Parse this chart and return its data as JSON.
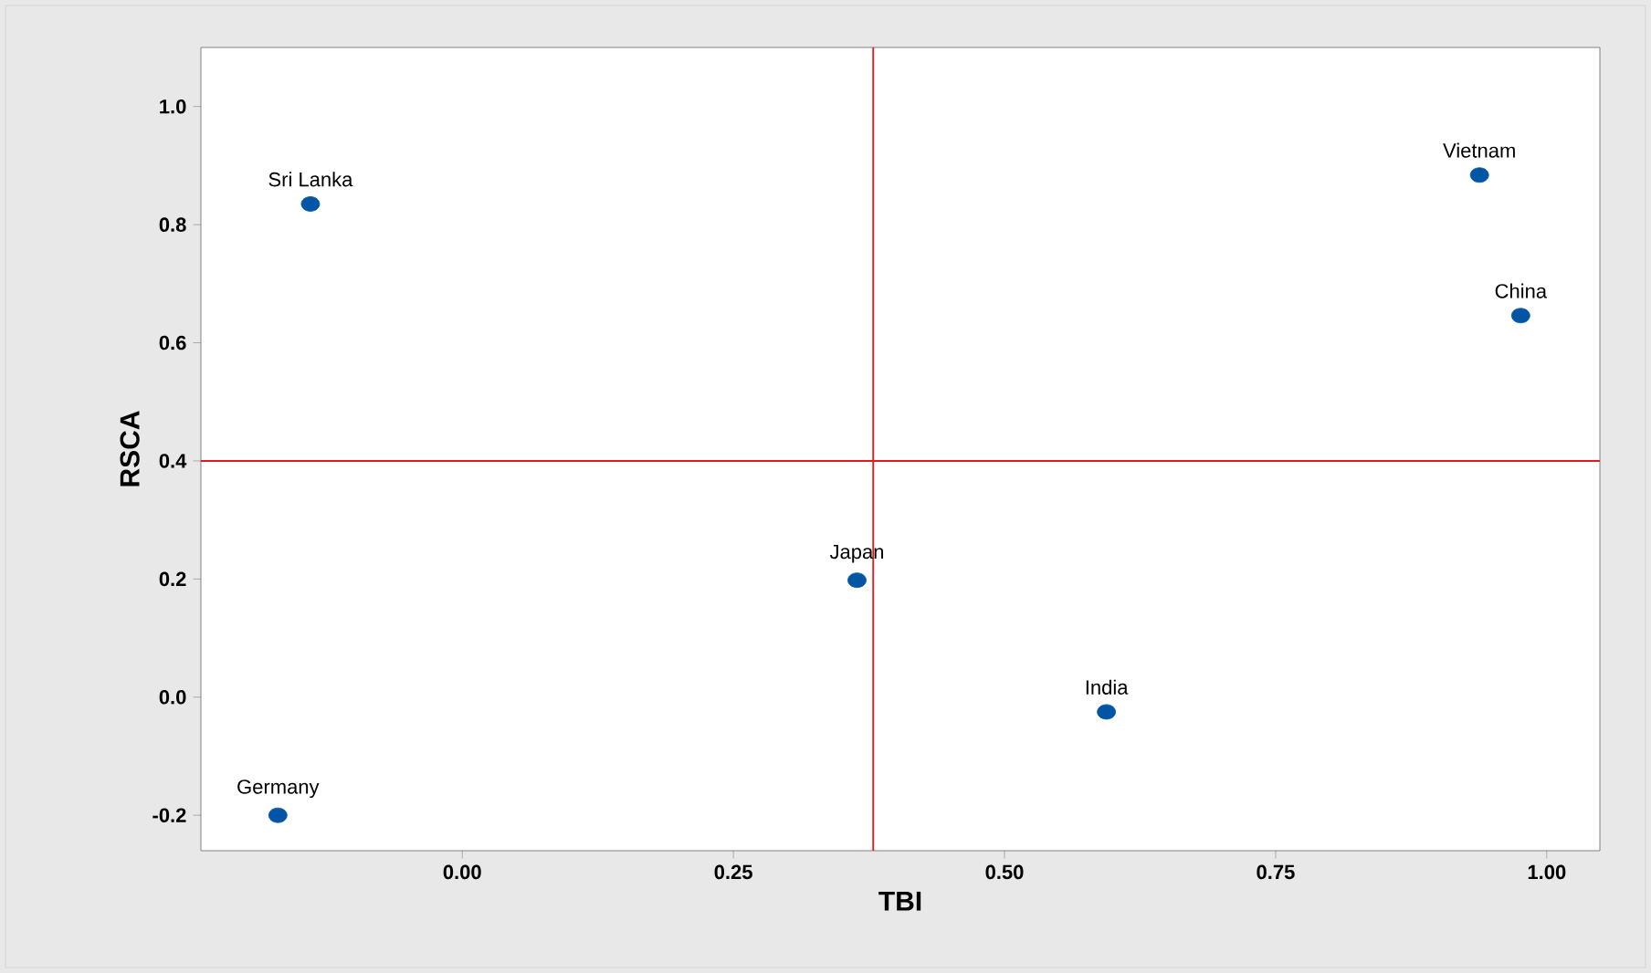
{
  "chart_data": {
    "type": "scatter",
    "xlabel": "TBI",
    "ylabel": "RSCA",
    "x": [
      -0.14,
      0.938,
      0.976,
      0.364,
      0.594,
      -0.17
    ],
    "values": [
      0.835,
      0.884,
      0.646,
      0.198,
      -0.025,
      -0.2
    ],
    "color": "#0055a5",
    "marker": "circle",
    "grid": false,
    "xlim": [
      -0.241,
      1.049
    ],
    "ylim": [
      -0.26,
      1.1
    ],
    "xticks": [
      {
        "value": 0,
        "label": "0.00"
      },
      {
        "value": 0.25,
        "label": "0.25"
      },
      {
        "value": 0.5,
        "label": "0.50"
      },
      {
        "value": 0.75,
        "label": "0.75"
      },
      {
        "value": 1,
        "label": "1.00"
      }
    ],
    "yticks": [
      {
        "value": -0.2,
        "label": "-0.2"
      },
      {
        "value": 0,
        "label": "0.0"
      },
      {
        "value": 0.2,
        "label": "0.2"
      },
      {
        "value": 0.4,
        "label": "0.4"
      },
      {
        "value": 0.6,
        "label": "0.6"
      },
      {
        "value": 0.8,
        "label": "0.8"
      },
      {
        "value": 1,
        "label": "1.0"
      }
    ],
    "ref_lines": [
      {
        "axis": "x",
        "value": 0.379,
        "color": "#e31a1c"
      },
      {
        "axis": "y",
        "value": 0.4,
        "color": "#e31a1c"
      }
    ],
    "annotations": [
      {
        "text": "Sri Lanka",
        "x": -0.14,
        "y": 0.835
      },
      {
        "text": "Vietnam",
        "x": 0.938,
        "y": 0.884
      },
      {
        "text": "China",
        "x": 0.976,
        "y": 0.646
      },
      {
        "text": "Japan",
        "x": 0.364,
        "y": 0.198
      },
      {
        "text": "India",
        "x": 0.594,
        "y": -0.025
      },
      {
        "text": "Germany",
        "x": -0.17,
        "y": -0.2
      }
    ]
  }
}
